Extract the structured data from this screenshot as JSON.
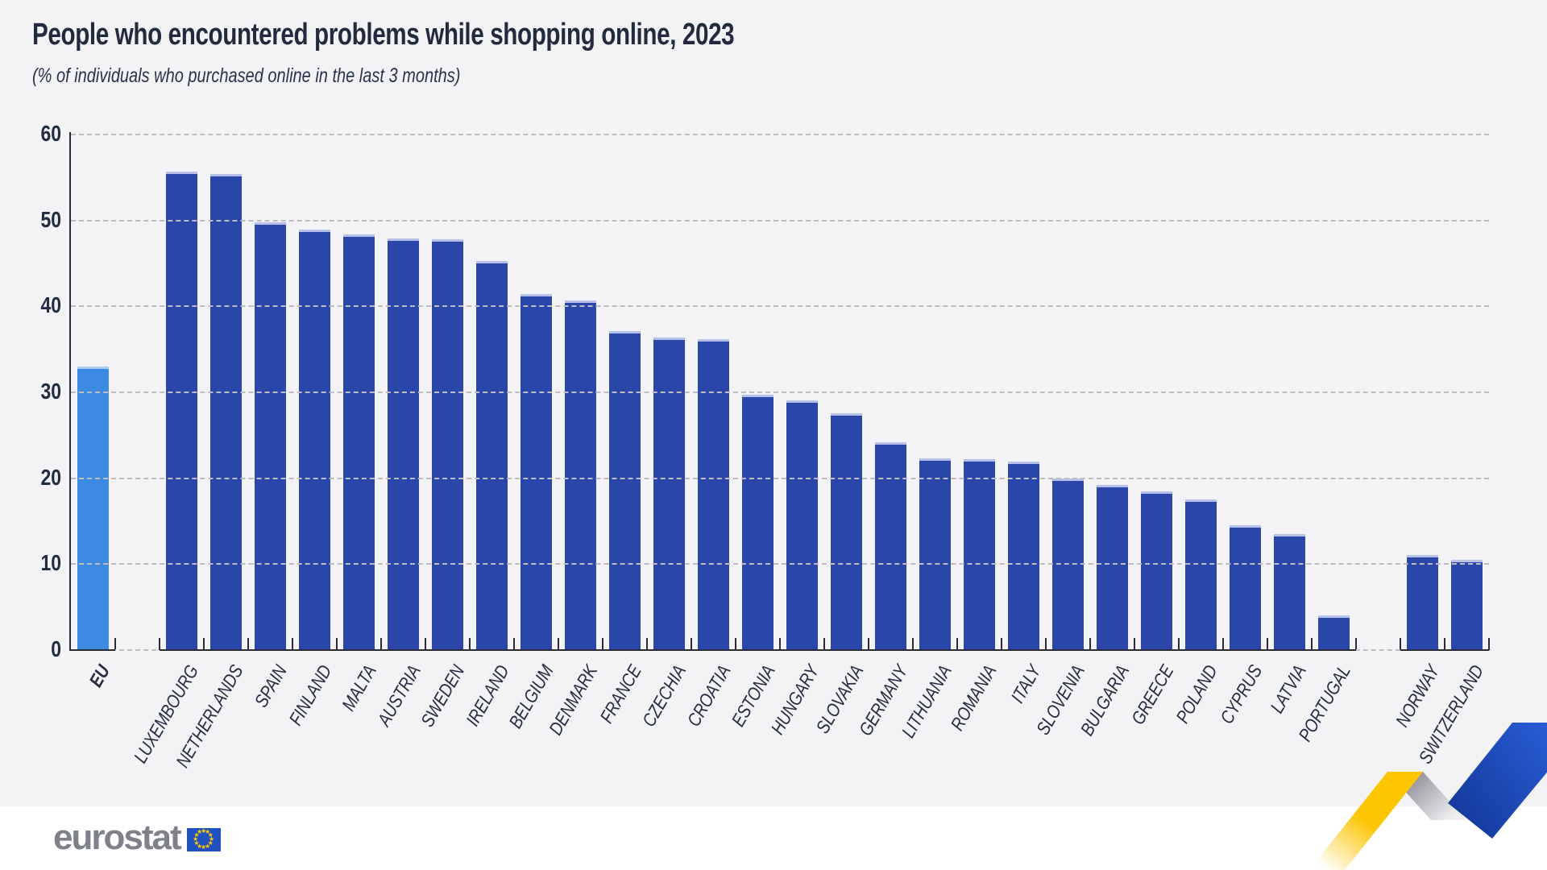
{
  "header": {
    "title": "People who encountered problems while shopping online, 2023",
    "subtitle": "(% of individuals who purchased online in the last 3 months)"
  },
  "logo": {
    "text": "eurostat",
    "flag": "eu-flag"
  },
  "palette": {
    "bar_blue": "#2a46a8",
    "bar_top_edge": "#b5c1e9",
    "eu_bar_blue": "#3d8ae2",
    "eu_bar_top_edge": "#a9cdf1",
    "background": "#f3f3f5",
    "text_dark": "#222c40",
    "gridline": "#bdbdc2",
    "logo_gray": "#7f818a",
    "flag_blue": "#2151c0",
    "flag_star_yellow": "#ffcc00",
    "ribbon_yellow": "#fdc600",
    "ribbon_gray": "#9a9aa1",
    "ribbon_blue_light": "#2b61dd",
    "ribbon_blue_dark": "#153c9e"
  },
  "chart_data": {
    "type": "bar",
    "title": "People who encountered problems while shopping online, 2023",
    "subtitle": "(% of individuals who purchased online in the last 3 months)",
    "ylabel": "",
    "xlabel": "",
    "ylim": [
      0,
      60
    ],
    "yticks": [
      0,
      10,
      20,
      30,
      40,
      50,
      60
    ],
    "grid": "horizontal-dashed",
    "legend": "none",
    "bars": [
      {
        "label": "EU",
        "value": 33.0,
        "eu": true
      },
      {
        "spacer": true
      },
      {
        "label": "LUXEMBOURG",
        "value": 55.7
      },
      {
        "label": "NETHERLANDS",
        "value": 55.4
      },
      {
        "label": "SPAIN",
        "value": 49.8
      },
      {
        "label": "FINLAND",
        "value": 48.9
      },
      {
        "label": "MALTA",
        "value": 48.4
      },
      {
        "label": "AUSTRIA",
        "value": 47.9
      },
      {
        "label": "SWEDEN",
        "value": 47.8
      },
      {
        "label": "IRELAND",
        "value": 45.3
      },
      {
        "label": "BELGIUM",
        "value": 41.4
      },
      {
        "label": "DENMARK",
        "value": 40.7
      },
      {
        "label": "FRANCE",
        "value": 37.1
      },
      {
        "label": "CZECHIA",
        "value": 36.4
      },
      {
        "label": "CROATIA",
        "value": 36.2
      },
      {
        "label": "ESTONIA",
        "value": 29.7
      },
      {
        "label": "HUNGARY",
        "value": 29.1
      },
      {
        "label": "SLOVAKIA",
        "value": 27.6
      },
      {
        "label": "GERMANY",
        "value": 24.2
      },
      {
        "label": "LITHUANIA",
        "value": 22.3
      },
      {
        "label": "ROMANIA",
        "value": 22.2
      },
      {
        "label": "ITALY",
        "value": 21.9
      },
      {
        "label": "SLOVENIA",
        "value": 20.0
      },
      {
        "label": "BULGARIA",
        "value": 19.2
      },
      {
        "label": "GREECE",
        "value": 18.5
      },
      {
        "label": "POLAND",
        "value": 17.5
      },
      {
        "label": "CYPRUS",
        "value": 14.5
      },
      {
        "label": "LATVIA",
        "value": 13.5
      },
      {
        "label": "PORTUGAL",
        "value": 4.0
      },
      {
        "spacer": true
      },
      {
        "label": "NORWAY",
        "value": 11.1
      },
      {
        "label": "SWITZERLAND",
        "value": 10.5
      }
    ]
  }
}
